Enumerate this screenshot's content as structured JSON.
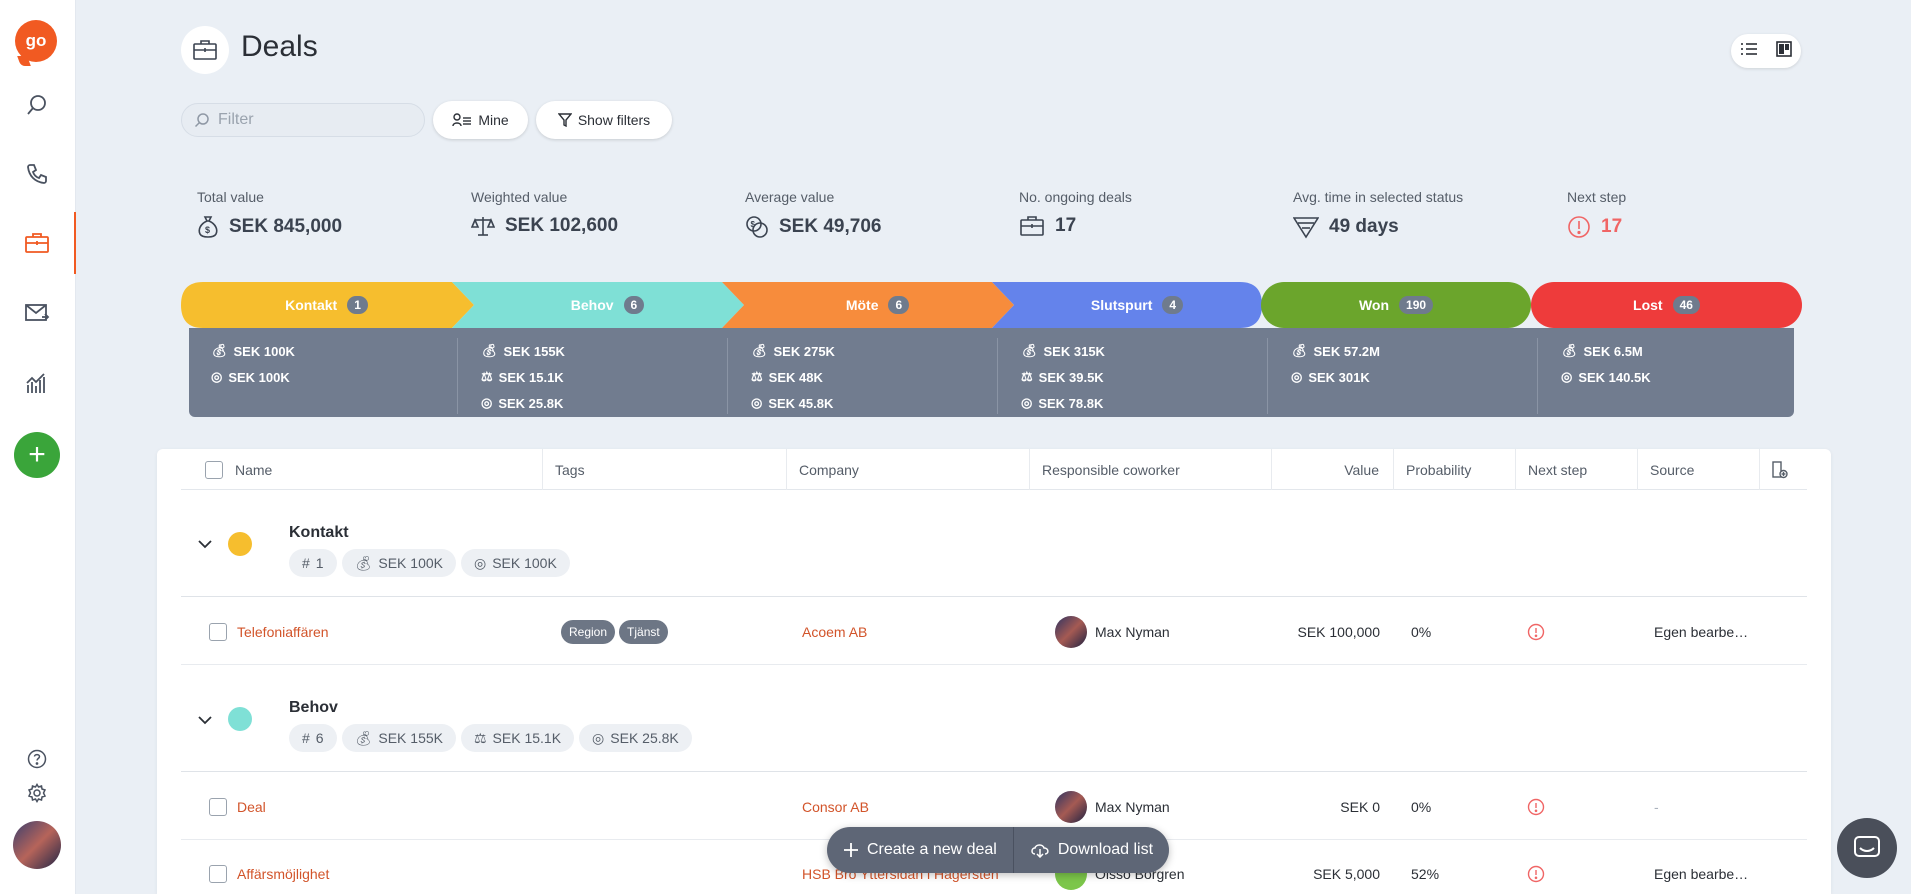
{
  "app": {
    "logo": "go",
    "title": "Deals"
  },
  "sidebar": {
    "items": [
      {
        "name": "search-icon"
      },
      {
        "name": "phone-icon"
      },
      {
        "name": "briefcase-icon"
      },
      {
        "name": "mail-icon"
      },
      {
        "name": "chart-icon"
      }
    ],
    "add": "+"
  },
  "toolbar": {
    "filter_placeholder": "Filter",
    "mine_label": "Mine",
    "filters_label": "Show filters"
  },
  "stats": [
    {
      "label": "Total value",
      "value": "SEK 845,000",
      "icon": "money-bag-icon"
    },
    {
      "label": "Weighted value",
      "value": "SEK 102,600",
      "icon": "scale-icon"
    },
    {
      "label": "Average value",
      "value": "SEK 49,706",
      "icon": "average-coins-icon"
    },
    {
      "label": "No. ongoing deals",
      "value": "17",
      "icon": "briefcase-icon"
    },
    {
      "label": "Avg. time in selected status",
      "value": "49 days",
      "icon": "funnel-clock-icon"
    },
    {
      "label": "Next step",
      "value": "17",
      "icon": "alert-icon"
    }
  ],
  "pipeline": [
    {
      "label": "Kontakt",
      "count": "1",
      "color": "#f6be2e",
      "lines": [
        "SEK 100K",
        "SEK 100K"
      ]
    },
    {
      "label": "Behov",
      "count": "6",
      "color": "#7fe0d6",
      "lines": [
        "SEK 155K",
        "SEK 15.1K",
        "SEK 25.8K"
      ]
    },
    {
      "label": "Möte",
      "count": "6",
      "color": "#f78c3c",
      "lines": [
        "SEK 275K",
        "SEK 48K",
        "SEK 45.8K"
      ]
    },
    {
      "label": "Slutspurt",
      "count": "4",
      "color": "#6483eb",
      "lines": [
        "SEK 315K",
        "SEK 39.5K",
        "SEK 78.8K"
      ]
    },
    {
      "label": "Won",
      "count": "190",
      "color": "#6ba52c",
      "lines": [
        "SEK 57.2M",
        "SEK 301K"
      ]
    },
    {
      "label": "Lost",
      "count": "46",
      "color": "#ee3b3b",
      "lines": [
        "SEK 6.5M",
        "SEK 140.5K"
      ]
    }
  ],
  "table": {
    "columns": [
      "Name",
      "Tags",
      "Company",
      "Responsible coworker",
      "Value",
      "Probability",
      "Next step",
      "Source"
    ],
    "groups": [
      {
        "title": "Kontakt",
        "color": "#f6be2e",
        "chips": [
          "1",
          "SEK 100K",
          "SEK 100K"
        ],
        "rows": [
          {
            "name": "Telefoniaffären",
            "tags": [
              "Region",
              "Tjänst"
            ],
            "company": "Acoem AB",
            "coworker": "Max Nyman",
            "value": "SEK 100,000",
            "probability": "0%",
            "source": "Egen bearbe…"
          }
        ]
      },
      {
        "title": "Behov",
        "color": "#7fe0d6",
        "chips": [
          "6",
          "SEK 155K",
          "SEK 15.1K",
          "SEK 25.8K"
        ],
        "rows": [
          {
            "name": "Deal",
            "tags": [],
            "company": "Consor AB",
            "coworker": "Max Nyman",
            "value": "SEK 0",
            "probability": "0%",
            "source": "-"
          },
          {
            "name": "Affärsmöjlighet",
            "tags": [],
            "company": "HSB Bro Yttersidan i Hagersten",
            "coworker": "Olsso Borgren",
            "value": "SEK 5,000",
            "probability": "52%",
            "source": "Egen bearbe…"
          }
        ]
      }
    ]
  },
  "actions": {
    "create": "Create a new deal",
    "download": "Download list"
  }
}
